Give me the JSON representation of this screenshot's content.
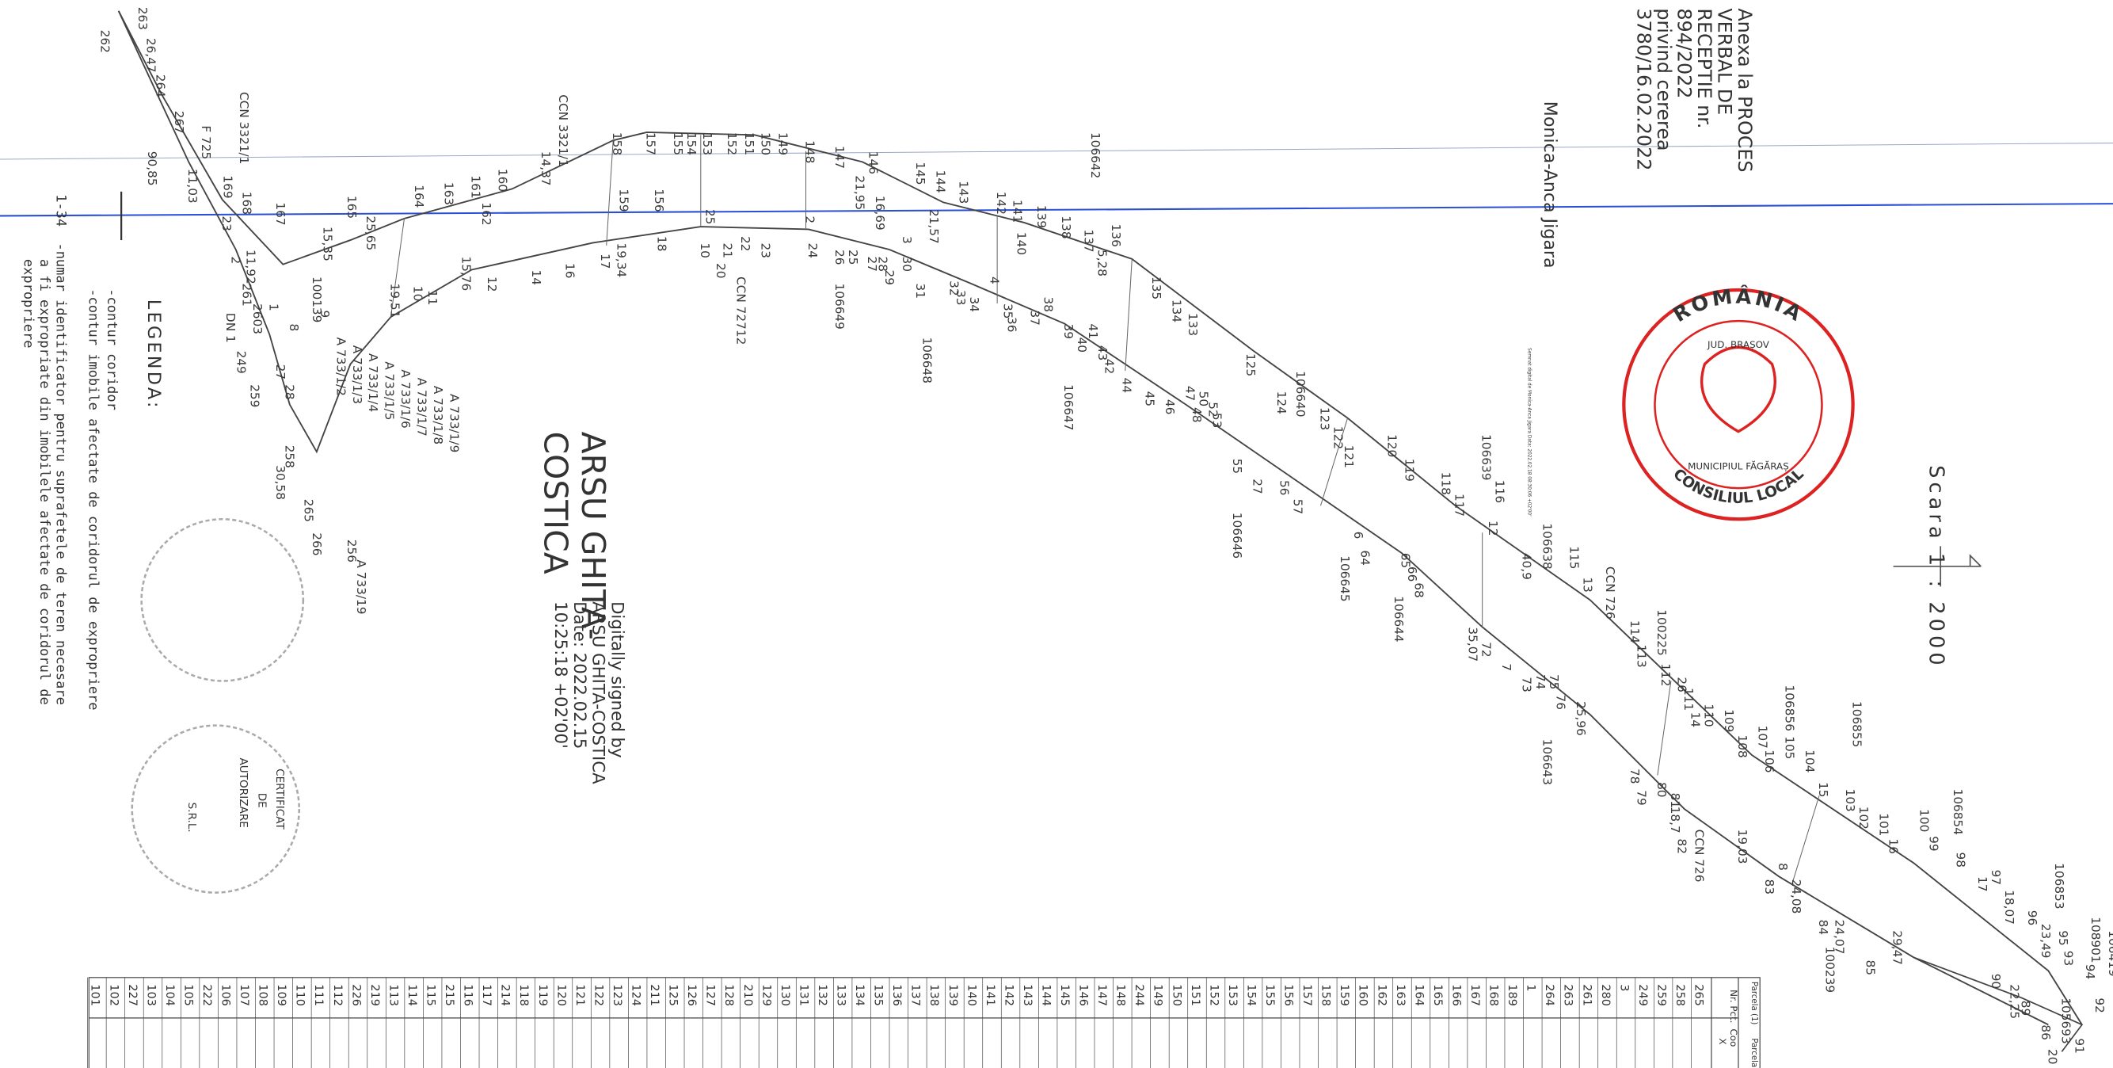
{
  "header": {
    "annex": [
      "Anexa la PROCES",
      "VERBAL DE",
      "RECEPTIE nr.",
      "894/2022",
      "privind cererea",
      "3780/16.02.2022"
    ],
    "signer": "Monica-Anca Jigara",
    "signer_note": "Semnat digital de Monica-Anca Jigara Data: 2022.02.18 08:30:06 +02'00'"
  },
  "scale": "Scara 1 : 2000",
  "stamp": {
    "top": "ROMÂNIA",
    "right": "MUNICIPIUL FĂGĂRAȘ",
    "bottom": "CONSILIUL LOCAL",
    "left": "JUD. BRAȘOV"
  },
  "signature": {
    "name_big_1": "ARSU GHITA-",
    "name_big_2": "COSTICA",
    "lines": [
      "Digitally signed by",
      "ARSU GHITA-COSTICA",
      "Date: 2022.02.15",
      "10:25:18 +02'00'"
    ]
  },
  "legend": {
    "title": "LEGENDA:",
    "items": [
      "-contur coridor",
      "-contur imobile afectate de coridorul de expropriere"
    ],
    "id_key": "1-34",
    "id_text": [
      "-numar identificator pentru suprafetele de teren necesare",
      "a fi expropriate din imobilele afectate de coridorul de",
      "expropriere"
    ]
  },
  "stamps": [
    "CERTIFICAT",
    "DE",
    "AUTORIZARE",
    "S.R.L."
  ],
  "labels": [
    "262",
    "263",
    "26,47",
    "264",
    "267",
    "90,85",
    "F 725",
    "11,03",
    "169",
    "168",
    "CCN 3321/1",
    "167",
    "165",
    "25,65",
    "15,35",
    "164",
    "163",
    "161",
    "162",
    "160",
    "14,37",
    "CCN 3321/1",
    "158",
    "159",
    "157",
    "156",
    "155",
    "154",
    "153",
    "152",
    "151",
    "150",
    "149",
    "148",
    "147",
    "146",
    "21,95",
    "16,69",
    "145",
    "144",
    "143",
    "21,57",
    "142",
    "141",
    "140",
    "139",
    "138",
    "137",
    "106642",
    "5,28",
    "136",
    "135",
    "134",
    "133",
    "125",
    "124",
    "106640",
    "123",
    "122",
    "121",
    "120",
    "119",
    "118",
    "117",
    "116",
    "12",
    "106639",
    "40,9",
    "106638",
    "115",
    "13",
    "CCN 726",
    "100225",
    "112",
    "26",
    "114",
    "113",
    "111",
    "14",
    "110",
    "109",
    "108",
    "107",
    "106",
    "106856",
    "105",
    "104",
    "103",
    "15",
    "102",
    "101",
    "106855",
    "16",
    "100",
    "106854",
    "99",
    "98",
    "97",
    "17",
    "18,07",
    "96",
    "23,49",
    "106853",
    "108901",
    "95",
    "94",
    "93",
    "92",
    "106419",
    "105693",
    "91",
    "20",
    "86",
    "89",
    "90",
    "22,25",
    "29,47",
    "85",
    "100239",
    "84",
    "24,07",
    "24,08",
    "8",
    "83",
    "19,03",
    "82",
    "CCN 726",
    "18,7",
    "81",
    "80",
    "79",
    "78",
    "25,96",
    "76",
    "75",
    "74",
    "73",
    "7",
    "106643",
    "72",
    "35,07",
    "106644",
    "68",
    "66",
    "65",
    "106645",
    "64",
    "6",
    "57",
    "56",
    "27",
    "106646",
    "55",
    "53",
    "52",
    "50",
    "48",
    "47",
    "46",
    "45",
    "44",
    "42",
    "43",
    "41",
    "106647",
    "40",
    "39",
    "38",
    "37",
    "36",
    "35",
    "4",
    "34",
    "33",
    "32",
    "106648",
    "31",
    "30",
    "3",
    "29",
    "28",
    "27",
    "106649",
    "25",
    "26",
    "24",
    "2",
    "23",
    "22",
    "21",
    "20",
    "10",
    "25",
    "CCN 72712",
    "18",
    "17",
    "19,34",
    "16",
    "14",
    "12",
    "15,76",
    "11",
    "10",
    "19,51",
    "9",
    "100139",
    "8",
    "1",
    "23",
    "2",
    "11,92",
    "261",
    "2603",
    "DN 1",
    "249",
    "259",
    "27",
    "28",
    "258",
    "30,58",
    "265",
    "266",
    "256",
    "A 733/19",
    "A 733/1/2",
    "A 733/1/3",
    "A 733/1/4",
    "A 733/1/5",
    "A 733/1/6",
    "A 733/1/7",
    "A 733/1/8",
    "A 733/1/9"
  ],
  "table": {
    "title": "Parcela (1)",
    "title2": "Parcela",
    "headers": [
      "Nr. Pct.",
      "Coo",
      "X"
    ],
    "rows": [
      "265",
      "258",
      "259",
      "249",
      "3",
      "280",
      "261",
      "263",
      "264",
      "1",
      "189",
      "168",
      "167",
      "166",
      "165",
      "164",
      "163",
      "162",
      "160",
      "159",
      "158",
      "157",
      "156",
      "155",
      "154",
      "153",
      "152",
      "151",
      "150",
      "149",
      "244",
      "148",
      "147",
      "146",
      "145",
      "144",
      "143",
      "142",
      "141",
      "140",
      "139",
      "138",
      "137",
      "136",
      "135",
      "134",
      "133",
      "132",
      "131",
      "130",
      "129",
      "210",
      "128",
      "127",
      "126",
      "125",
      "211",
      "124",
      "123",
      "122",
      "121",
      "120",
      "119",
      "118",
      "214",
      "117",
      "116",
      "215",
      "115",
      "114",
      "113",
      "219",
      "226",
      "112",
      "111",
      "110",
      "109",
      "108",
      "107",
      "106",
      "222",
      "105",
      "104",
      "103",
      "227",
      "102",
      "101"
    ]
  }
}
